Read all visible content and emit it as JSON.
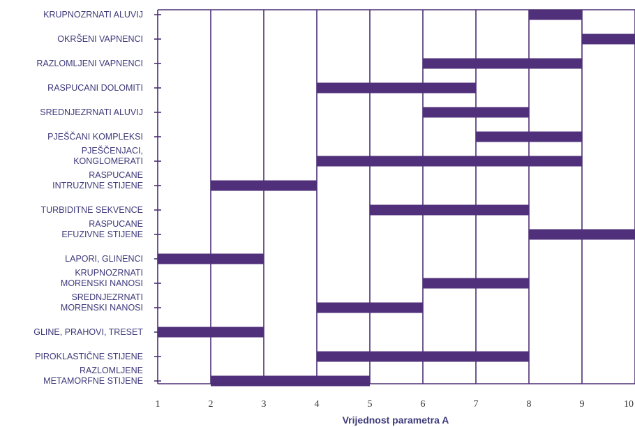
{
  "chart_data": {
    "type": "bar",
    "orientation": "horizontal-range",
    "xlabel": "Vrijednost parametra A",
    "xlim": [
      1,
      10
    ],
    "x_ticks": [
      "1",
      "2",
      "3",
      "4",
      "5",
      "6",
      "7",
      "8",
      "9",
      "10"
    ],
    "grid": true,
    "bar_color": "#50307a",
    "axis_color": "#4b2f73",
    "categories": [
      {
        "label": [
          "KRUPNOZRNATI ALUVIJ"
        ],
        "range": [
          8,
          9
        ]
      },
      {
        "label": [
          "OKRŠENI VAPNENCI"
        ],
        "range": [
          9,
          10
        ]
      },
      {
        "label": [
          "RAZLOMLJENI VAPNENCI"
        ],
        "range": [
          6,
          9
        ]
      },
      {
        "label": [
          "RASPUCANI DOLOMITI"
        ],
        "range": [
          4,
          7
        ]
      },
      {
        "label": [
          "SREDNJEZRNATI ALUVIJ"
        ],
        "range": [
          6,
          8
        ]
      },
      {
        "label": [
          "PJEŠČANI KOMPLEKSI"
        ],
        "range": [
          7,
          9
        ]
      },
      {
        "label": [
          "PJEŠČENJACI,",
          "KONGLOMERATI"
        ],
        "range": [
          4,
          9
        ]
      },
      {
        "label": [
          "RASPUCANE",
          "INTRUZIVNE STIJENE"
        ],
        "range": [
          2,
          4
        ]
      },
      {
        "label": [
          "TURBIDITNE SEKVENCE"
        ],
        "range": [
          5,
          8
        ]
      },
      {
        "label": [
          "RASPUCANE",
          "EFUZIVNE STIJENE"
        ],
        "range": [
          8,
          10
        ]
      },
      {
        "label": [
          "LAPORI, GLINENCI"
        ],
        "range": [
          1,
          3
        ]
      },
      {
        "label": [
          "KRUPNOZRNATI",
          "MORENSKI NANOSI"
        ],
        "range": [
          6,
          8
        ]
      },
      {
        "label": [
          "SREDNJEZRNATI",
          "MORENSKI NANOSI"
        ],
        "range": [
          4,
          6
        ]
      },
      {
        "label": [
          "GLINE, PRAHOVI, TRESET"
        ],
        "range": [
          1,
          3
        ]
      },
      {
        "label": [
          "PIROKLASTIČNE STIJENE"
        ],
        "range": [
          4,
          8
        ]
      },
      {
        "label": [
          "RAZLOMLJENE",
          "METAMORFNE STIJENE"
        ],
        "range": [
          2,
          5
        ]
      }
    ]
  }
}
